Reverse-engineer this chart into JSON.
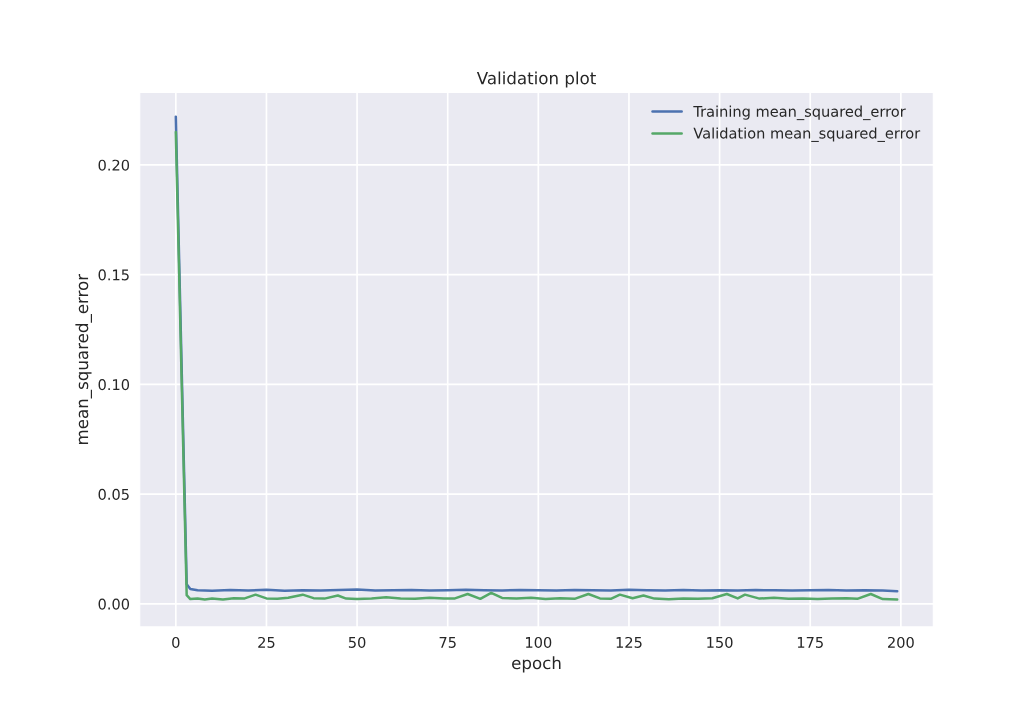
{
  "chart_data": {
    "type": "line",
    "title": "Validation plot",
    "xlabel": "epoch",
    "ylabel": "mean_squared_error",
    "xlim": [
      -9.95,
      208.95
    ],
    "ylim": [
      -0.0105,
      0.233
    ],
    "xticks": [
      0,
      25,
      50,
      75,
      100,
      125,
      150,
      175,
      200
    ],
    "yticks": [
      {
        "value": 0,
        "label": "0.00"
      },
      {
        "value": 0.05,
        "label": "0.05"
      },
      {
        "value": 0.1,
        "label": "0.10"
      },
      {
        "value": 0.15,
        "label": "0.15"
      },
      {
        "value": 0.2,
        "label": "0.20"
      }
    ],
    "grid": true,
    "legend": "top right",
    "marker": "none",
    "line_style": "solid",
    "series": [
      {
        "name": "Training mean_squared_error",
        "color": "#4c72b0",
        "x": [
          0,
          3,
          4,
          6,
          10,
          15,
          20,
          25,
          30,
          35,
          40,
          45,
          50,
          55,
          60,
          65,
          70,
          75,
          80,
          85,
          90,
          95,
          100,
          105,
          110,
          115,
          120,
          125,
          130,
          135,
          140,
          145,
          150,
          155,
          160,
          165,
          170,
          175,
          180,
          185,
          190,
          195,
          199
        ],
        "values": [
          0.222,
          0.009,
          0.0068,
          0.0062,
          0.006,
          0.0063,
          0.0061,
          0.0064,
          0.006,
          0.0062,
          0.0061,
          0.0063,
          0.0066,
          0.0061,
          0.0062,
          0.0063,
          0.0061,
          0.0062,
          0.0064,
          0.0062,
          0.0061,
          0.0063,
          0.0062,
          0.0061,
          0.0063,
          0.0062,
          0.0061,
          0.0064,
          0.0062,
          0.0061,
          0.0063,
          0.0061,
          0.0062,
          0.0061,
          0.0063,
          0.0062,
          0.0061,
          0.0062,
          0.0063,
          0.0061,
          0.0062,
          0.0061,
          0.0058
        ]
      },
      {
        "name": "Validation mean_squared_error",
        "color": "#55a868",
        "x": [
          0,
          3,
          4,
          6,
          8,
          10,
          13,
          16,
          19,
          22,
          25,
          28,
          31,
          35,
          38,
          41,
          44.7,
          47,
          50,
          54,
          58,
          62,
          66,
          70,
          74,
          77,
          80.5,
          84,
          87,
          90,
          94,
          98,
          102,
          106,
          110,
          113.8,
          117,
          120,
          122.5,
          126,
          129,
          132,
          136,
          140,
          144,
          148,
          152,
          155,
          157,
          161,
          165,
          169,
          173,
          177,
          181,
          185,
          188,
          191.7,
          195,
          199
        ],
        "values": [
          0.215,
          0.004,
          0.0022,
          0.0025,
          0.002,
          0.0024,
          0.002,
          0.0026,
          0.0025,
          0.0042,
          0.0025,
          0.0023,
          0.0028,
          0.0042,
          0.0026,
          0.0024,
          0.0038,
          0.0024,
          0.0022,
          0.0025,
          0.003,
          0.0024,
          0.0023,
          0.0028,
          0.0024,
          0.0025,
          0.0045,
          0.0023,
          0.005,
          0.0027,
          0.0024,
          0.0028,
          0.0022,
          0.0026,
          0.0023,
          0.0045,
          0.0025,
          0.0023,
          0.0042,
          0.0026,
          0.0038,
          0.0024,
          0.0021,
          0.0025,
          0.0023,
          0.0026,
          0.0045,
          0.0025,
          0.0042,
          0.0024,
          0.0028,
          0.0023,
          0.0025,
          0.0022,
          0.0024,
          0.0026,
          0.0023,
          0.0045,
          0.0022,
          0.002
        ]
      }
    ]
  }
}
